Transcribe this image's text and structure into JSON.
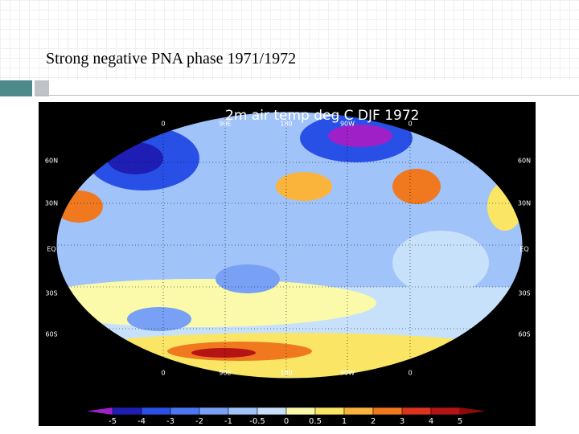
{
  "slide": {
    "title": "Strong negative PNA phase 1971/1972"
  },
  "figure": {
    "title": "2m air temp deg C DJF 1972",
    "lon_labels": [
      "0",
      "90E",
      "180",
      "90W",
      "0"
    ],
    "lat_labels": [
      "60N",
      "30N",
      "EQ",
      "30S",
      "60S"
    ],
    "colorbar": {
      "labels": [
        "-5",
        "-4",
        "-3",
        "-2",
        "-1",
        "-0.5",
        "0",
        "0.5",
        "1",
        "2",
        "3",
        "4",
        "5"
      ],
      "colors": [
        "#a020c8",
        "#1e1eb4",
        "#2850e6",
        "#4a78f0",
        "#78a0f5",
        "#a0c3fa",
        "#c8e1fa",
        "#fafaaa",
        "#fae664",
        "#fab43c",
        "#f0781e",
        "#dc321e",
        "#b41414",
        "#8c0a0a"
      ]
    }
  }
}
